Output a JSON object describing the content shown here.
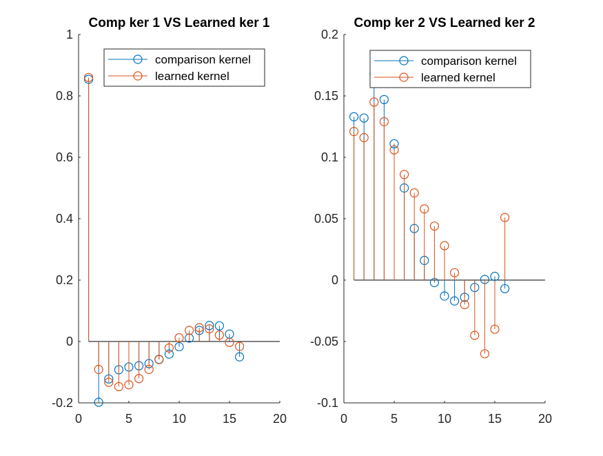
{
  "colors": {
    "comparison": "#0072BD",
    "learned": "#D95319",
    "axis": "#262626"
  },
  "chart_data": [
    {
      "type": "stem",
      "title": "Comp ker 1  VS Learned ker 1",
      "xlabel": "",
      "ylabel": "",
      "xlim": [
        0,
        20
      ],
      "ylim": [
        -0.2,
        1
      ],
      "xticks": [
        "0",
        "5",
        "10",
        "15",
        "20"
      ],
      "yticks": [
        "-0.2",
        "0",
        "0.2",
        "0.4",
        "0.6",
        "0.8",
        "1"
      ],
      "legend_position": "top-right",
      "x": [
        1,
        2,
        3,
        4,
        5,
        6,
        7,
        8,
        9,
        10,
        11,
        12,
        13,
        14,
        15,
        16
      ],
      "series": [
        {
          "name": "comparison kernel",
          "values": [
            0.854,
            -0.198,
            -0.122,
            -0.092,
            -0.083,
            -0.079,
            -0.072,
            -0.058,
            -0.041,
            -0.017,
            0.011,
            0.036,
            0.052,
            0.051,
            0.024,
            -0.05
          ]
        },
        {
          "name": "learned kernel",
          "values": [
            0.86,
            -0.091,
            -0.133,
            -0.147,
            -0.141,
            -0.121,
            -0.091,
            -0.059,
            -0.021,
            0.012,
            0.036,
            0.045,
            0.041,
            0.021,
            -0.003,
            -0.016
          ]
        }
      ]
    },
    {
      "type": "stem",
      "title": "Comp ker 2  VS Learned ker 2",
      "xlabel": "",
      "ylabel": "",
      "xlim": [
        0,
        20
      ],
      "ylim": [
        -0.1,
        0.2
      ],
      "xticks": [
        "0",
        "5",
        "10",
        "15",
        "20"
      ],
      "yticks": [
        "-0.1",
        "-0.05",
        "0",
        "0.05",
        "0.1",
        "0.15",
        "0.2"
      ],
      "legend_position": "top-right",
      "x": [
        1,
        2,
        3,
        4,
        5,
        6,
        7,
        8,
        9,
        10,
        11,
        12,
        13,
        14,
        15,
        16
      ],
      "series": [
        {
          "name": "comparison kernel",
          "values": [
            0.133,
            0.132,
            0.168,
            0.147,
            0.111,
            0.075,
            0.042,
            0.016,
            -0.002,
            -0.013,
            -0.017,
            -0.014,
            -0.006,
            0.0005,
            0.003,
            -0.007
          ]
        },
        {
          "name": "learned kernel",
          "values": [
            0.121,
            0.116,
            0.145,
            0.129,
            0.106,
            0.086,
            0.071,
            0.058,
            0.044,
            0.028,
            0.006,
            -0.02,
            -0.045,
            -0.06,
            -0.04,
            0.051
          ]
        }
      ]
    }
  ]
}
